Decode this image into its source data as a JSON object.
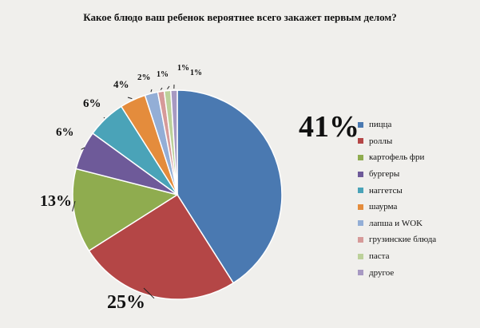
{
  "chart_data": {
    "type": "pie",
    "title": "Какое блюдо ваш ребенок вероятнее всего закажет первым делом?",
    "categories": [
      "пицца",
      "роллы",
      "картофель фри",
      "бургеры",
      "наггетсы",
      "шаурма",
      "лапша и WOK",
      "грузинские блюда",
      "паста",
      "другое"
    ],
    "values": [
      41,
      25,
      13,
      6,
      6,
      4,
      2,
      1,
      1,
      1
    ],
    "labels": [
      "41%",
      "25%",
      "13%",
      "6%",
      "6%",
      "4%",
      "2%",
      "1%",
      "1%",
      "1%"
    ],
    "colors": [
      "#4a79b1",
      "#b44646",
      "#8fac4f",
      "#6e5a99",
      "#4aa3b8",
      "#e48c3c",
      "#93aed6",
      "#d69a99",
      "#bcd19a",
      "#a799c2"
    ],
    "legend_position": "right"
  }
}
